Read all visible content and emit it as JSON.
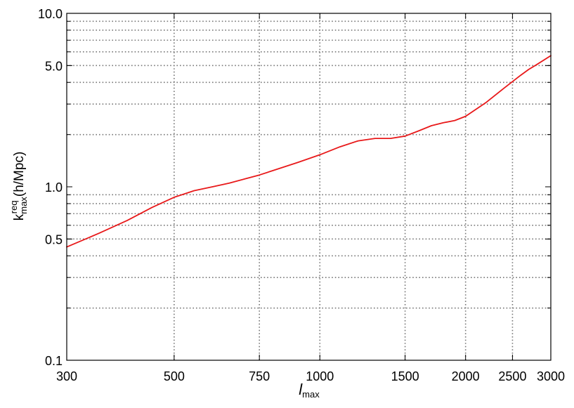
{
  "chart_data": {
    "type": "line",
    "title": "",
    "xscale": "log",
    "yscale": "log",
    "xlim": [
      300,
      3000
    ],
    "ylim": [
      0.1,
      10.0
    ],
    "grid": true,
    "xlabel": {
      "main": "l",
      "sub": "max"
    },
    "ylabel": {
      "main": "k",
      "sup": "req",
      "sub": "max",
      "rest": " (h/Mpc)"
    },
    "x_ticks": [
      {
        "value": 300,
        "label": "300"
      },
      {
        "value": 500,
        "label": "500"
      },
      {
        "value": 750,
        "label": "750"
      },
      {
        "value": 1000,
        "label": "1000"
      },
      {
        "value": 1500,
        "label": "1500"
      },
      {
        "value": 2000,
        "label": "2000"
      },
      {
        "value": 2500,
        "label": "2500"
      },
      {
        "value": 3000,
        "label": "3000"
      }
    ],
    "y_ticks": [
      {
        "value": 0.1,
        "label": "0.1"
      },
      {
        "value": 0.5,
        "label": "0.5"
      },
      {
        "value": 1.0,
        "label": "1.0"
      },
      {
        "value": 5.0,
        "label": "5.0"
      },
      {
        "value": 10.0,
        "label": "10.0"
      }
    ],
    "y_minor_grid": [
      0.2,
      0.3,
      0.4,
      0.5,
      0.6,
      0.7,
      0.8,
      0.9,
      2,
      3,
      4,
      5,
      6,
      7,
      8,
      9
    ],
    "series": [
      {
        "color": "#e8191a",
        "x": [
          300,
          350,
          400,
          450,
          500,
          550,
          600,
          650,
          700,
          750,
          800,
          900,
          1000,
          1100,
          1200,
          1300,
          1400,
          1500,
          1600,
          1700,
          1800,
          1900,
          2000,
          2200,
          2400,
          2600,
          2700,
          2800,
          3000
        ],
        "y": [
          0.45,
          0.54,
          0.64,
          0.76,
          0.87,
          0.95,
          1.0,
          1.05,
          1.11,
          1.17,
          1.24,
          1.38,
          1.53,
          1.7,
          1.84,
          1.9,
          1.9,
          1.96,
          2.1,
          2.25,
          2.34,
          2.41,
          2.55,
          3.05,
          3.7,
          4.4,
          4.75,
          5.05,
          5.7
        ]
      }
    ]
  }
}
